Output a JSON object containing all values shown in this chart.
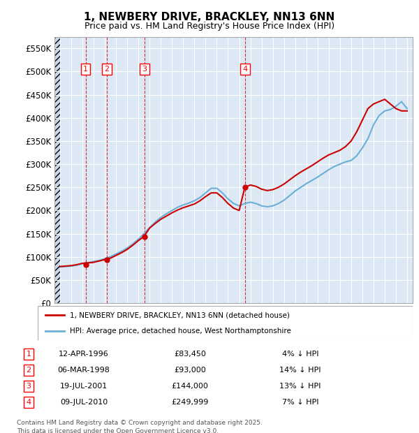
{
  "title": "1, NEWBERY DRIVE, BRACKLEY, NN13 6NN",
  "subtitle": "Price paid vs. HM Land Registry's House Price Index (HPI)",
  "legend_label_red": "1, NEWBERY DRIVE, BRACKLEY, NN13 6NN (detached house)",
  "legend_label_blue": "HPI: Average price, detached house, West Northamptonshire",
  "footer_line1": "Contains HM Land Registry data © Crown copyright and database right 2025.",
  "footer_line2": "This data is licensed under the Open Government Licence v3.0.",
  "transactions": [
    {
      "num": 1,
      "date": "12-APR-1996",
      "price": 83450,
      "pct": "4%",
      "x": 1996.28
    },
    {
      "num": 2,
      "date": "06-MAR-1998",
      "price": 93000,
      "pct": "14%",
      "x": 1998.18
    },
    {
      "num": 3,
      "date": "19-JUL-2001",
      "price": 144000,
      "pct": "13%",
      "x": 2001.54
    },
    {
      "num": 4,
      "date": "09-JUL-2010",
      "price": 249999,
      "pct": "7%",
      "x": 2010.52
    }
  ],
  "ylim": [
    0,
    575000
  ],
  "xlim": [
    1993.5,
    2025.5
  ],
  "yticks": [
    0,
    50000,
    100000,
    150000,
    200000,
    250000,
    300000,
    350000,
    400000,
    450000,
    500000,
    550000
  ],
  "ytick_labels": [
    "£0",
    "£50K",
    "£100K",
    "£150K",
    "£200K",
    "£250K",
    "£300K",
    "£350K",
    "£400K",
    "£450K",
    "£500K",
    "£550K"
  ],
  "hpi_color": "#6baed6",
  "price_color": "#cc0000",
  "background_plot": "#dce9f5",
  "background_hatch": "#c8d8e8",
  "vline_color": "#cc0000",
  "hpi_x": [
    1994.0,
    1994.5,
    1995.0,
    1995.5,
    1996.0,
    1996.5,
    1997.0,
    1997.5,
    1998.0,
    1998.5,
    1999.0,
    1999.5,
    2000.0,
    2000.5,
    2001.0,
    2001.5,
    2002.0,
    2002.5,
    2003.0,
    2003.5,
    2004.0,
    2004.5,
    2005.0,
    2005.5,
    2006.0,
    2006.5,
    2007.0,
    2007.5,
    2008.0,
    2008.5,
    2009.0,
    2009.5,
    2010.0,
    2010.5,
    2011.0,
    2011.5,
    2012.0,
    2012.5,
    2013.0,
    2013.5,
    2014.0,
    2014.5,
    2015.0,
    2015.5,
    2016.0,
    2016.5,
    2017.0,
    2017.5,
    2018.0,
    2018.5,
    2019.0,
    2019.5,
    2020.0,
    2020.5,
    2021.0,
    2021.5,
    2022.0,
    2022.5,
    2023.0,
    2023.5,
    2024.0,
    2024.5,
    2025.0
  ],
  "hpi_y": [
    78000,
    79000,
    80000,
    82000,
    85000,
    87000,
    90000,
    92000,
    96000,
    100000,
    106000,
    112000,
    119000,
    128000,
    138000,
    150000,
    163000,
    175000,
    185000,
    193000,
    200000,
    207000,
    212000,
    216000,
    221000,
    228000,
    238000,
    248000,
    248000,
    238000,
    225000,
    215000,
    210000,
    215000,
    218000,
    215000,
    210000,
    208000,
    210000,
    215000,
    222000,
    232000,
    242000,
    250000,
    258000,
    265000,
    272000,
    280000,
    288000,
    295000,
    300000,
    305000,
    308000,
    318000,
    335000,
    355000,
    385000,
    405000,
    415000,
    418000,
    425000,
    435000,
    420000
  ],
  "price_x": [
    1994.0,
    1994.5,
    1995.0,
    1995.5,
    1996.0,
    1996.5,
    1997.0,
    1997.5,
    1998.0,
    1998.5,
    1999.0,
    1999.5,
    2000.0,
    2000.5,
    2001.0,
    2001.5,
    2002.0,
    2002.5,
    2003.0,
    2003.5,
    2004.0,
    2004.5,
    2005.0,
    2005.5,
    2006.0,
    2006.5,
    2007.0,
    2007.5,
    2008.0,
    2008.5,
    2009.0,
    2009.5,
    2010.0,
    2010.5,
    2011.0,
    2011.5,
    2012.0,
    2012.5,
    2013.0,
    2013.5,
    2014.0,
    2014.5,
    2015.0,
    2015.5,
    2016.0,
    2016.5,
    2017.0,
    2017.5,
    2018.0,
    2018.5,
    2019.0,
    2019.5,
    2020.0,
    2020.5,
    2021.0,
    2021.5,
    2022.0,
    2022.5,
    2023.0,
    2023.5,
    2024.0,
    2024.5,
    2025.0
  ],
  "price_y": [
    79000,
    80000,
    81000,
    83000,
    86000,
    87000,
    88000,
    91000,
    94000,
    97000,
    103000,
    109000,
    116000,
    125000,
    135000,
    144000,
    162000,
    172000,
    181000,
    188000,
    195000,
    201000,
    206000,
    210000,
    214000,
    221000,
    230000,
    238000,
    238000,
    228000,
    215000,
    205000,
    200000,
    249999,
    255000,
    252000,
    246000,
    243000,
    245000,
    250000,
    257000,
    266000,
    275000,
    283000,
    290000,
    297000,
    305000,
    313000,
    320000,
    325000,
    330000,
    338000,
    350000,
    370000,
    395000,
    420000,
    430000,
    435000,
    440000,
    430000,
    420000,
    415000,
    415000
  ]
}
